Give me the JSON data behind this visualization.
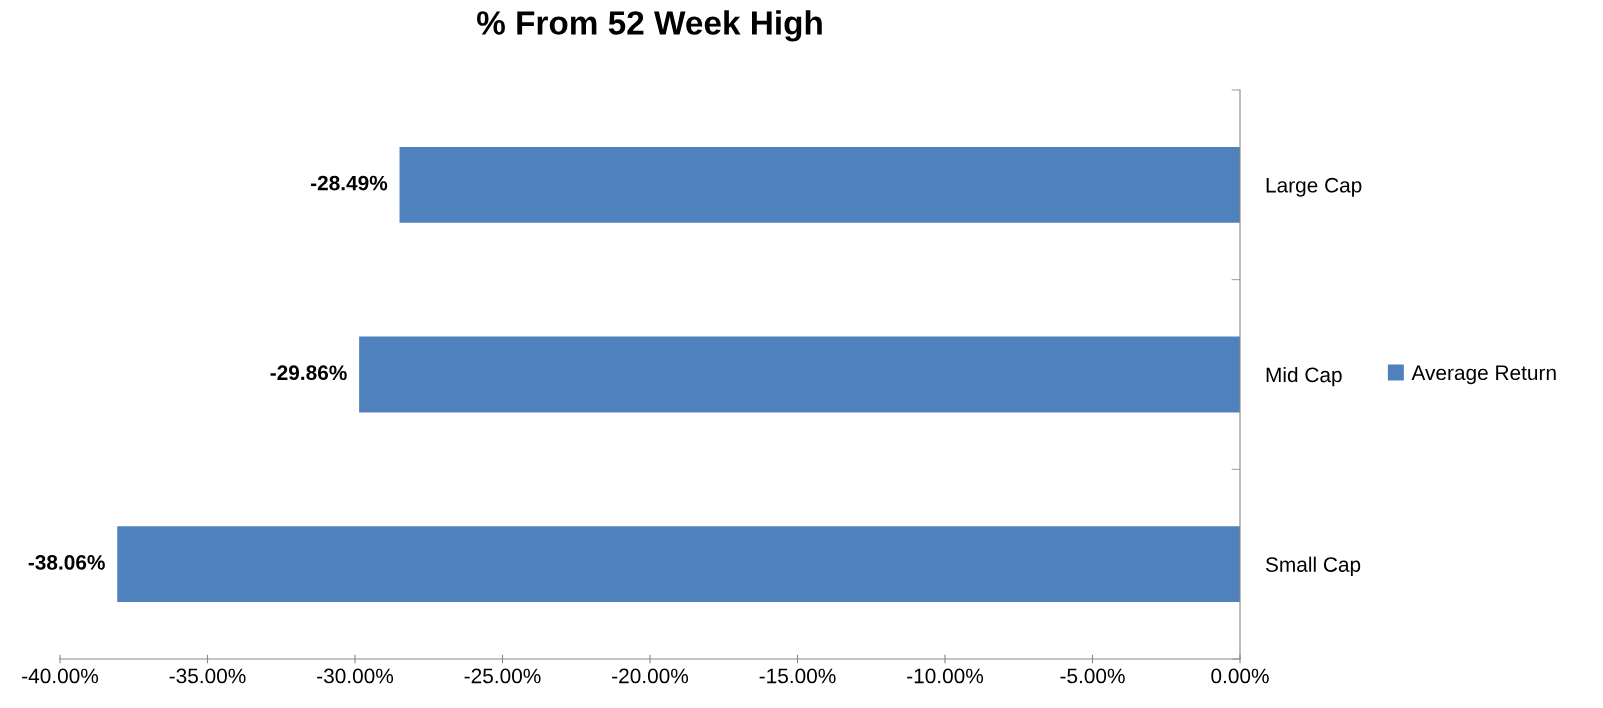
{
  "chart_data": {
    "type": "bar",
    "orientation": "horizontal",
    "title": "% From 52 Week High",
    "categories": [
      "Large Cap",
      "Mid Cap",
      "Small Cap"
    ],
    "series": [
      {
        "name": "Average Return",
        "color": "#4f81bd",
        "values": [
          -28.49,
          -29.86,
          -38.06
        ],
        "value_labels": [
          "-28.49%",
          "-29.86%",
          "-38.06%"
        ]
      }
    ],
    "xlim": [
      -40,
      0
    ],
    "xticks": [
      {
        "value": -40,
        "label": "-40.00%"
      },
      {
        "value": -35,
        "label": "-35.00%"
      },
      {
        "value": -30,
        "label": "-30.00%"
      },
      {
        "value": -25,
        "label": "-25.00%"
      },
      {
        "value": -20,
        "label": "-20.00%"
      },
      {
        "value": -15,
        "label": "-15.00%"
      },
      {
        "value": -10,
        "label": "-10.00%"
      },
      {
        "value": -5,
        "label": "-5.00%"
      },
      {
        "value": 0,
        "label": "0.00%"
      }
    ],
    "legend": "right",
    "grid": false
  }
}
